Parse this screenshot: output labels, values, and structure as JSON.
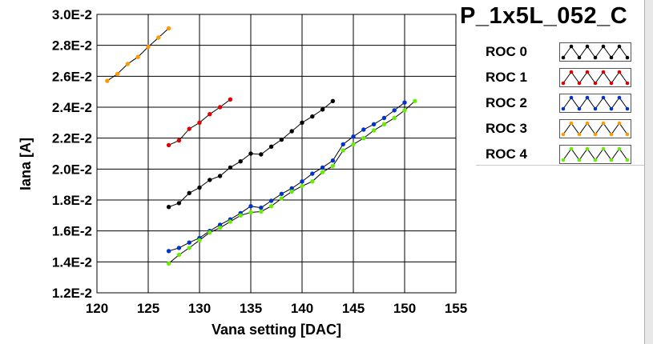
{
  "chart_data": {
    "type": "line",
    "title": "P_1x5L_052_C",
    "xlabel": "Vana setting [DAC]",
    "ylabel": "Iana [A]",
    "xlim": [
      120,
      155
    ],
    "ylim": [
      0.012,
      0.03
    ],
    "x_ticks": [
      "120",
      "125",
      "130",
      "135",
      "140",
      "145",
      "150",
      "155"
    ],
    "y_ticks": [
      "1.2E-2",
      "1.4E-2",
      "1.6E-2",
      "1.8E-2",
      "2.0E-2",
      "2.2E-2",
      "2.4E-2",
      "2.6E-2",
      "2.8E-2",
      "3.0E-2"
    ],
    "grid": true,
    "legend_position": "right",
    "series": [
      {
        "name": "ROC 0",
        "color": "#000000",
        "x": [
          127,
          128,
          129,
          130,
          131,
          132,
          133,
          134,
          135,
          136,
          137,
          138,
          139,
          140,
          141,
          142,
          143
        ],
        "y": [
          0.01755,
          0.0178,
          0.01845,
          0.0188,
          0.0193,
          0.01955,
          0.0201,
          0.0205,
          0.021,
          0.02095,
          0.02145,
          0.0219,
          0.02245,
          0.023,
          0.0234,
          0.02385,
          0.0244
        ]
      },
      {
        "name": "ROC 1",
        "color": "#e00000",
        "x": [
          127,
          128,
          129,
          130,
          131,
          132,
          133
        ],
        "y": [
          0.02155,
          0.02185,
          0.0226,
          0.023,
          0.02355,
          0.024,
          0.0245
        ]
      },
      {
        "name": "ROC 2",
        "color": "#0033cc",
        "x": [
          127,
          128,
          129,
          130,
          131,
          132,
          133,
          134,
          135,
          136,
          137,
          138,
          139,
          140,
          141,
          142,
          143,
          144,
          145,
          146,
          147,
          148,
          149,
          150
        ],
        "y": [
          0.0147,
          0.0149,
          0.01525,
          0.01555,
          0.016,
          0.0164,
          0.01675,
          0.01715,
          0.0176,
          0.0175,
          0.01795,
          0.0184,
          0.01875,
          0.0192,
          0.0197,
          0.0201,
          0.02055,
          0.0216,
          0.0221,
          0.02255,
          0.0229,
          0.0233,
          0.0238,
          0.0243
        ]
      },
      {
        "name": "ROC 3",
        "color": "#ff9900",
        "x": [
          121,
          122,
          123,
          124,
          125,
          126,
          127
        ],
        "y": [
          0.0257,
          0.02615,
          0.0268,
          0.02725,
          0.0279,
          0.0285,
          0.0291
        ]
      },
      {
        "name": "ROC 4",
        "color": "#66ee00",
        "x": [
          127,
          128,
          129,
          130,
          131,
          132,
          133,
          134,
          135,
          136,
          137,
          138,
          139,
          140,
          141,
          142,
          143,
          144,
          145,
          146,
          147,
          148,
          149,
          150,
          151
        ],
        "y": [
          0.0139,
          0.01445,
          0.0149,
          0.0154,
          0.0159,
          0.0162,
          0.0166,
          0.017,
          0.0172,
          0.01725,
          0.0176,
          0.0181,
          0.01855,
          0.0189,
          0.0192,
          0.0198,
          0.0202,
          0.0212,
          0.0216,
          0.022,
          0.0225,
          0.0229,
          0.0233,
          0.0238,
          0.0244
        ]
      }
    ]
  },
  "legend": [
    {
      "label": "ROC 0",
      "color": "#000000"
    },
    {
      "label": "ROC 1",
      "color": "#e00000"
    },
    {
      "label": "ROC 2",
      "color": "#0033cc"
    },
    {
      "label": "ROC 3",
      "color": "#ff9900"
    },
    {
      "label": "ROC 4",
      "color": "#66ee00"
    }
  ]
}
